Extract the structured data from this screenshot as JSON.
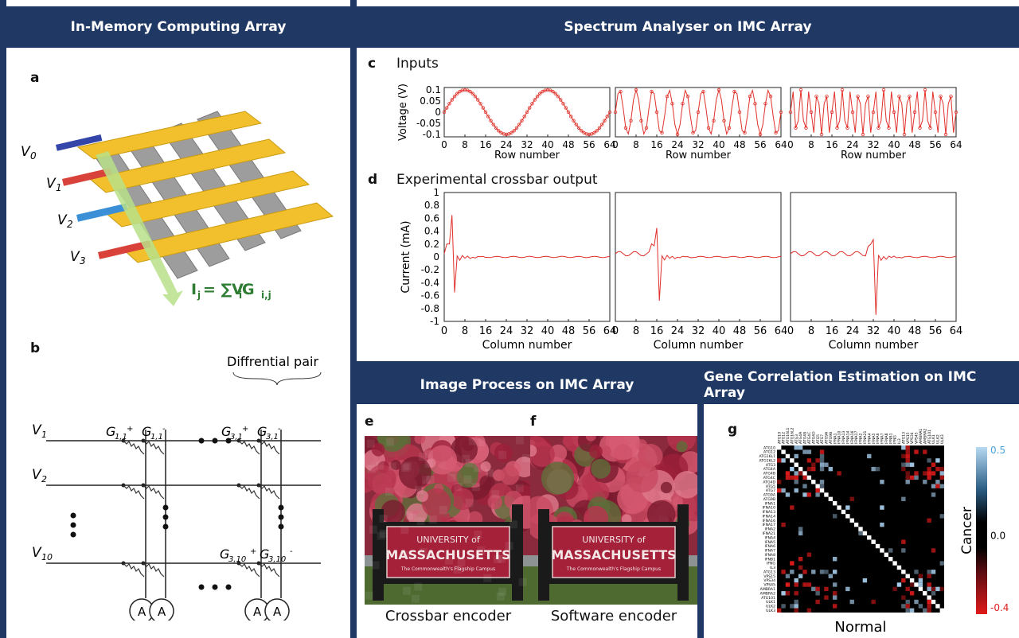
{
  "panels": {
    "imc": {
      "title": "In-Memory Computing Array"
    },
    "spectrum": {
      "title": "Spectrum Analyser on IMC Array"
    },
    "image": {
      "title": "Image Process on IMC Array"
    },
    "gene": {
      "title": "Gene Correlation Estimation on IMC Array"
    }
  },
  "labels": {
    "a": "a",
    "b": "b",
    "c": "c",
    "d": "d",
    "e": "e",
    "f": "f",
    "g": "g"
  },
  "diagram_a": {
    "v0": "V",
    "v0_sub": "0",
    "v1": "V",
    "v1_sub": "1",
    "v2": "V",
    "v2_sub": "2",
    "v3": "V",
    "v3_sub": "3",
    "eq_main": "I",
    "eq_sub_j": "j",
    "eq_mid": " = ∑V",
    "eq_sub_i": "i",
    "eq_g": " G",
    "eq_sub_ij": "i,j"
  },
  "diagram_b": {
    "diff_pair": "Diffrential pair",
    "rows": [
      "1",
      "2",
      "10"
    ],
    "g11p": "1,1",
    "g11m": "1,1",
    "g31p": "3,1",
    "g31m": "3,1",
    "g310p": "3,10",
    "g310m": "3,10",
    "ammeter": "A"
  },
  "inputs_title": "Inputs",
  "output_title": "Experimental crossbar output",
  "axes": {
    "row_xlabel": "Row number",
    "col_xlabel": "Column number",
    "voltage_ylabel": "Voltage (V)",
    "current_ylabel": "Current (mA)",
    "x_ticks": [
      "0",
      "8",
      "16",
      "24",
      "32",
      "40",
      "48",
      "56",
      "64"
    ],
    "v_ticks": [
      "0.1",
      "0.05",
      "0",
      "-0.05",
      "-0.1"
    ],
    "i_ticks": [
      "1",
      "0.8",
      "0.6",
      "0.4",
      "0.2",
      "0",
      "-0.2",
      "-0.4",
      "-0.6",
      "-0.8",
      "-1"
    ]
  },
  "chart_data": [
    {
      "type": "line",
      "series": [
        {
          "freq_cycles": 2
        }
      ],
      "xlim": [
        0,
        64
      ],
      "ylim": [
        -0.1,
        0.1
      ],
      "xlabel": "Row number",
      "ylabel": "Voltage (V)"
    },
    {
      "type": "line",
      "series": [
        {
          "freq_cycles": 10
        }
      ],
      "xlim": [
        0,
        64
      ],
      "ylim": [
        -0.1,
        0.1
      ],
      "xlabel": "Row number"
    },
    {
      "type": "line",
      "series": [
        {
          "freq_cycles": 20
        }
      ],
      "xlim": [
        0,
        64
      ],
      "ylim": [
        -0.1,
        0.1
      ],
      "xlabel": "Row number"
    },
    {
      "type": "line",
      "peak_column": 3,
      "peak": 0.65,
      "dip": -0.55,
      "xlim": [
        0,
        64
      ],
      "ylim": [
        -1,
        1
      ],
      "xlabel": "Column number",
      "ylabel": "Current (mA)"
    },
    {
      "type": "line",
      "peak_column": 16,
      "peak": 0.45,
      "dip": -0.68,
      "xlim": [
        0,
        64
      ],
      "ylim": [
        -1,
        1
      ],
      "xlabel": "Column number"
    },
    {
      "type": "line",
      "peak_column": 32,
      "peak": 0.27,
      "dip": -0.9,
      "xlim": [
        0,
        64
      ],
      "ylim": [
        -1,
        1
      ],
      "xlabel": "Column number"
    }
  ],
  "images": {
    "sign_line1": "UNIVERSITY of",
    "sign_line2": "MASSACHUSETTS",
    "sign_line3": "The Commonwealth's Flagship Campus",
    "caption_e": "Crossbar encoder",
    "caption_f": "Software encoder"
  },
  "heatmap": {
    "xlabel": "Normal",
    "ylabel": "Cancer",
    "ticks": [
      "0.5",
      "0.0",
      "-0.4"
    ],
    "genes": [
      "ATG10",
      "ATG12",
      "ATG16L1",
      "ATG16L2",
      "ATG3",
      "ATG4A",
      "ATG4B",
      "ATG4C",
      "ATG4D",
      "ATG5",
      "ATG7",
      "ATG9A",
      "ATG9B",
      "IFNA1",
      "IFNA10",
      "IFNA13",
      "IFNA14",
      "IFNA16",
      "IFNA17",
      "IFNA2",
      "IFNA21",
      "IFNA4",
      "IFNA5",
      "IFNA6",
      "IFNA7",
      "IFNA8",
      "IFNB1",
      "IFNG",
      "IL3",
      "ATG13",
      "VPS15",
      "VPS34",
      "VPS45",
      "AMBRA1",
      "AMBRA2",
      "ATG101",
      "ULK1",
      "ULK2",
      "ULK3"
    ],
    "colors": {
      "pos": "#a8cfee",
      "neg": "#e01a1a",
      "zero": "#000000"
    }
  },
  "colors": {
    "navy": "#1f3864",
    "gold": "#f2c02c",
    "red_line": "#e0302a"
  }
}
